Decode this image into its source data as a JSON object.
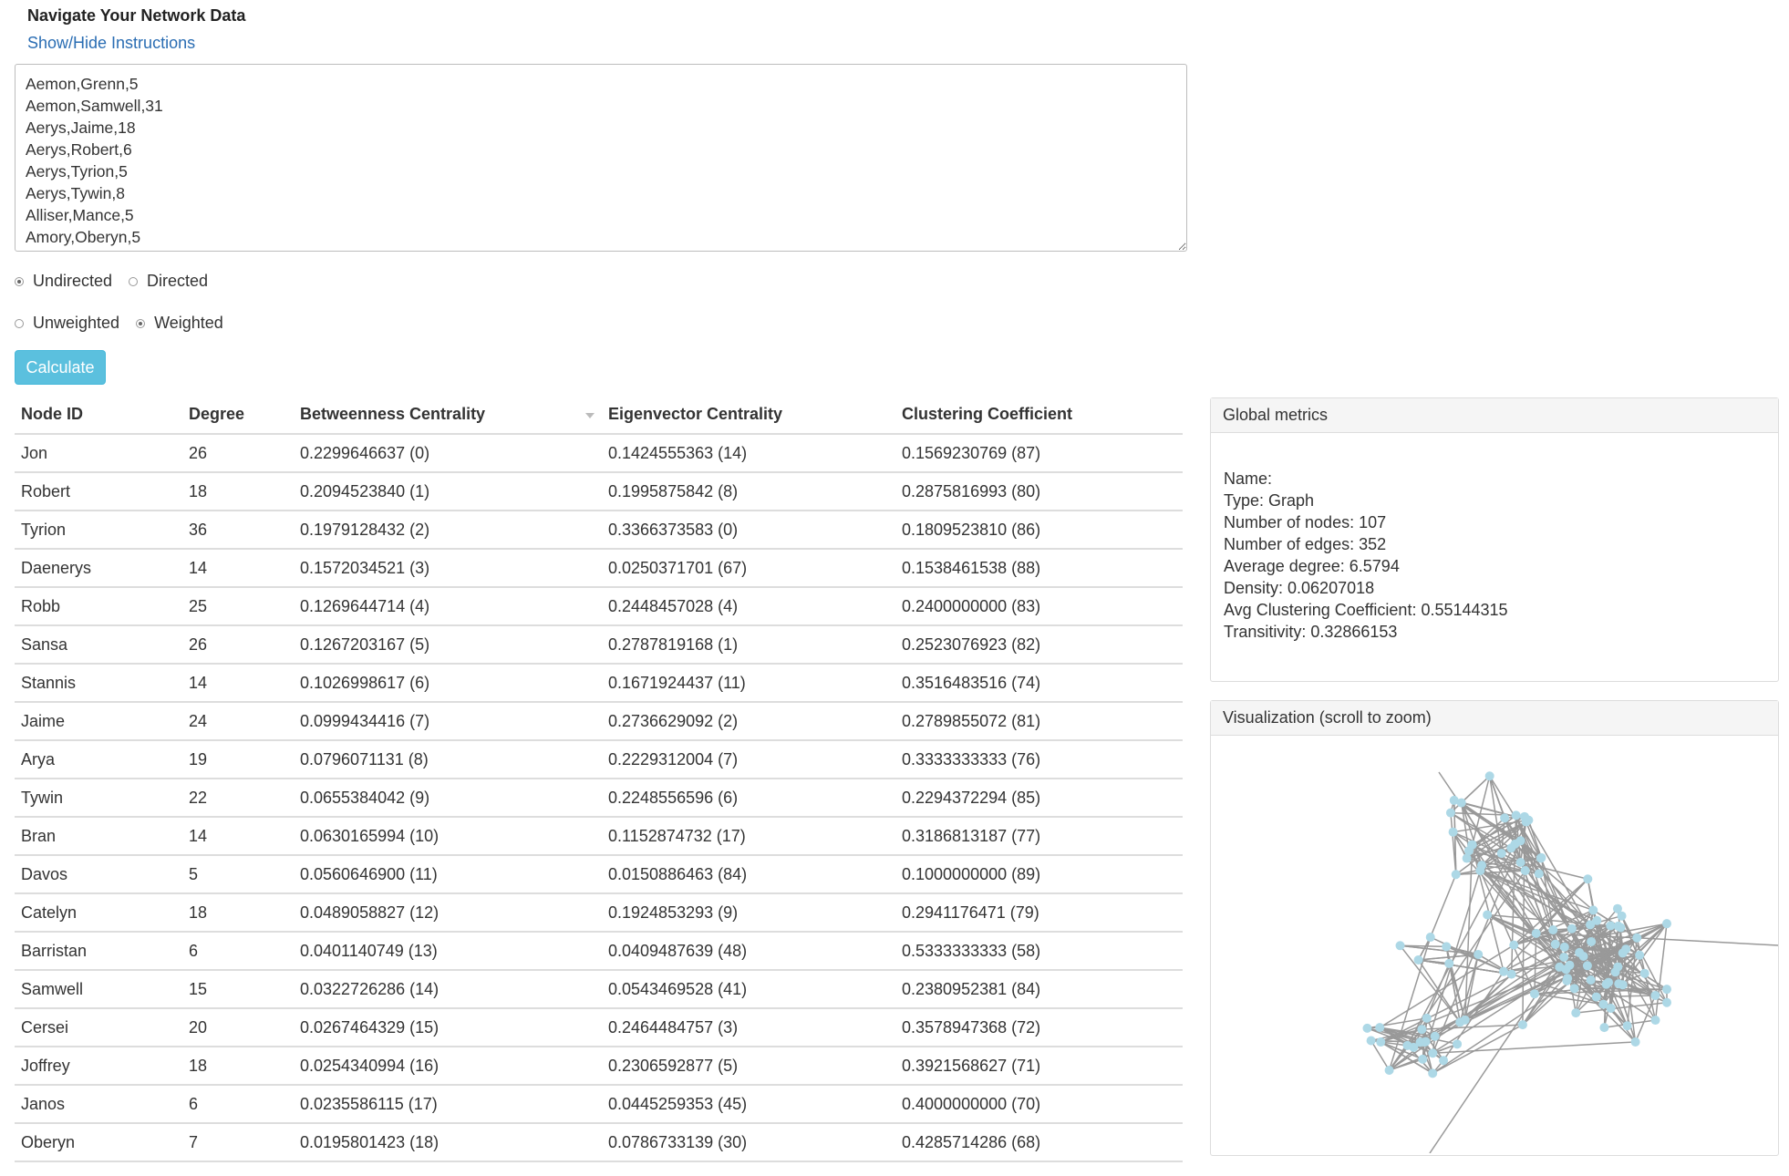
{
  "page": {
    "title": "Navigate Your Network Data",
    "toggle_instructions": "Show/Hide Instructions"
  },
  "edges_input": {
    "value": "Aemon,Grenn,5\nAemon,Samwell,31\nAerys,Jaime,18\nAerys,Robert,6\nAerys,Tyrion,5\nAerys,Tywin,8\nAlliser,Mance,5\nAmory,Oberyn,5"
  },
  "options": {
    "direction": [
      {
        "label": "Undirected",
        "checked": true
      },
      {
        "label": "Directed",
        "checked": false
      }
    ],
    "weighting": [
      {
        "label": "Unweighted",
        "checked": false
      },
      {
        "label": "Weighted",
        "checked": true
      }
    ]
  },
  "calculate_label": "Calculate",
  "table": {
    "headers": [
      "Node ID",
      "Degree",
      "Betweenness Centrality",
      "Eigenvector Centrality",
      "Clustering Coefficient"
    ],
    "rows": [
      [
        "Jon",
        "26",
        "0.2299646637 (0)",
        "0.1424555363 (14)",
        "0.1569230769 (87)"
      ],
      [
        "Robert",
        "18",
        "0.2094523840 (1)",
        "0.1995875842 (8)",
        "0.2875816993 (80)"
      ],
      [
        "Tyrion",
        "36",
        "0.1979128432 (2)",
        "0.3366373583 (0)",
        "0.1809523810 (86)"
      ],
      [
        "Daenerys",
        "14",
        "0.1572034521 (3)",
        "0.0250371701 (67)",
        "0.1538461538 (88)"
      ],
      [
        "Robb",
        "25",
        "0.1269644714 (4)",
        "0.2448457028 (4)",
        "0.2400000000 (83)"
      ],
      [
        "Sansa",
        "26",
        "0.1267203167 (5)",
        "0.2787819168 (1)",
        "0.2523076923 (82)"
      ],
      [
        "Stannis",
        "14",
        "0.1026998617 (6)",
        "0.1671924437 (11)",
        "0.3516483516 (74)"
      ],
      [
        "Jaime",
        "24",
        "0.0999434416 (7)",
        "0.2736629092 (2)",
        "0.2789855072 (81)"
      ],
      [
        "Arya",
        "19",
        "0.0796071131 (8)",
        "0.2229312004 (7)",
        "0.3333333333 (76)"
      ],
      [
        "Tywin",
        "22",
        "0.0655384042 (9)",
        "0.2248556596 (6)",
        "0.2294372294 (85)"
      ],
      [
        "Bran",
        "14",
        "0.0630165994 (10)",
        "0.1152874732 (17)",
        "0.3186813187 (77)"
      ],
      [
        "Davos",
        "5",
        "0.0560646900 (11)",
        "0.0150886463 (84)",
        "0.1000000000 (89)"
      ],
      [
        "Catelyn",
        "18",
        "0.0489058827 (12)",
        "0.1924853293 (9)",
        "0.2941176471 (79)"
      ],
      [
        "Barristan",
        "6",
        "0.0401140749 (13)",
        "0.0409487639 (48)",
        "0.5333333333 (58)"
      ],
      [
        "Samwell",
        "15",
        "0.0322726286 (14)",
        "0.0543469528 (41)",
        "0.2380952381 (84)"
      ],
      [
        "Cersei",
        "20",
        "0.0267464329 (15)",
        "0.2464484757 (3)",
        "0.3578947368 (72)"
      ],
      [
        "Joffrey",
        "18",
        "0.0254340994 (16)",
        "0.2306592877 (5)",
        "0.3921568627 (71)"
      ],
      [
        "Janos",
        "6",
        "0.0235586115 (17)",
        "0.0445259353 (45)",
        "0.4000000000 (70)"
      ],
      [
        "Oberyn",
        "7",
        "0.0195801423 (18)",
        "0.0786733139 (30)",
        "0.4285714286 (68)"
      ]
    ]
  },
  "global_metrics": {
    "heading": "Global metrics",
    "lines": [
      "Name:",
      "Type: Graph",
      "Number of nodes: 107",
      "Number of edges: 352",
      "Average degree: 6.5794",
      "Density: 0.06207018",
      "Avg Clustering Coefficient: 0.55144315",
      "Transitivity: 0.32866153"
    ]
  },
  "visualization": {
    "heading": "Visualization (scroll to zoom)",
    "node_color": "#add8e6",
    "edge_color": "#999999"
  }
}
